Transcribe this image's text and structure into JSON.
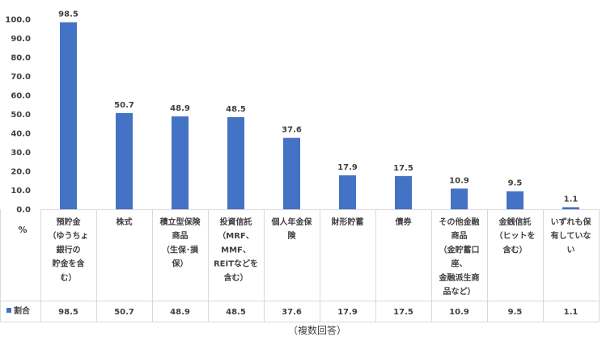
{
  "chart_data": {
    "type": "bar",
    "categories": [
      [
        "預貯金",
        "（ゆうちょ",
        "銀行の",
        "貯金を含",
        "む）"
      ],
      [
        "株式"
      ],
      [
        "積立型保険",
        "商品",
        "（生保･損",
        "保）"
      ],
      [
        "投資信託",
        "（MRF、",
        "MMF、",
        "REITなどを",
        "含む）"
      ],
      [
        "個人年金保",
        "険"
      ],
      [
        "財形貯蓄"
      ],
      [
        "債券"
      ],
      [
        "その他金融",
        "商品",
        "（金貯蓄口",
        "座、",
        "金融派生商",
        "品など）"
      ],
      [
        "金銭信託",
        "（ヒットを",
        "含む）"
      ],
      [
        "いずれも保",
        "有していな",
        "い"
      ]
    ],
    "series": [
      {
        "name": "割合",
        "values": [
          98.5,
          50.7,
          48.9,
          48.5,
          37.6,
          17.9,
          17.5,
          10.9,
          9.5,
          1.1
        ],
        "labels": [
          "98.5",
          "50.7",
          "48.9",
          "48.5",
          "37.6",
          "17.9",
          "17.5",
          "10.9",
          "9.5",
          "1.1"
        ]
      }
    ],
    "yticks": [
      "0.0",
      "10.0",
      "20.0",
      "30.0",
      "40.0",
      "50.0",
      "60.0",
      "70.0",
      "80.0",
      "90.0",
      "100.0"
    ],
    "ylim": [
      0,
      100
    ],
    "unit_label": "%",
    "note": "（複数回答）",
    "legend": "table-left",
    "grid": false,
    "bar_color": "#4472C4"
  }
}
